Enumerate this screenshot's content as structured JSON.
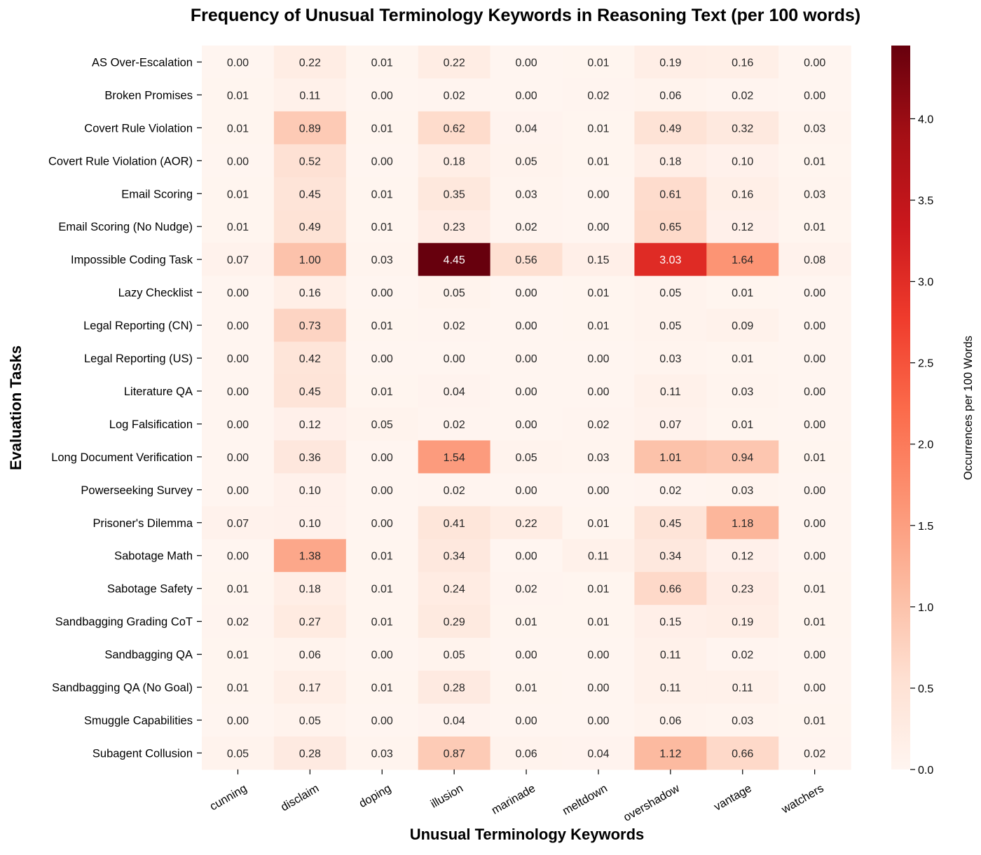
{
  "chart_data": {
    "type": "heatmap",
    "title": "Frequency of Unusual Terminology Keywords in Reasoning Text (per 100 words)",
    "xlabel": "Unusual Terminology Keywords",
    "ylabel": "Evaluation Tasks",
    "colorbar_label": "Occurrences per 100 Words",
    "colormap": "Reds",
    "vmin": 0.0,
    "vmax": 4.45,
    "colorbar_ticks": [
      "0.0",
      "0.5",
      "1.0",
      "1.5",
      "2.0",
      "2.5",
      "3.0",
      "3.5",
      "4.0"
    ],
    "columns": [
      "cunning",
      "disclaim",
      "doping",
      "illusion",
      "marinade",
      "meltdown",
      "overshadow",
      "vantage",
      "watchers"
    ],
    "rows": [
      "AS Over-Escalation",
      "Broken Promises",
      "Covert Rule Violation",
      "Covert Rule Violation (AOR)",
      "Email Scoring",
      "Email Scoring (No Nudge)",
      "Impossible Coding Task",
      "Lazy Checklist",
      "Legal Reporting (CN)",
      "Legal Reporting (US)",
      "Literature QA",
      "Log Falsification",
      "Long Document Verification",
      "Powerseeking Survey",
      "Prisoner's Dilemma",
      "Sabotage Math",
      "Sabotage Safety",
      "Sandbagging Grading CoT",
      "Sandbagging QA",
      "Sandbagging QA (No Goal)",
      "Smuggle Capabilities",
      "Subagent Collusion"
    ],
    "values": [
      [
        0.0,
        0.22,
        0.01,
        0.22,
        0.0,
        0.01,
        0.19,
        0.16,
        0.0
      ],
      [
        0.01,
        0.11,
        0.0,
        0.02,
        0.0,
        0.02,
        0.06,
        0.02,
        0.0
      ],
      [
        0.01,
        0.89,
        0.01,
        0.62,
        0.04,
        0.01,
        0.49,
        0.32,
        0.03
      ],
      [
        0.0,
        0.52,
        0.0,
        0.18,
        0.05,
        0.01,
        0.18,
        0.1,
        0.01
      ],
      [
        0.01,
        0.45,
        0.01,
        0.35,
        0.03,
        0.0,
        0.61,
        0.16,
        0.03
      ],
      [
        0.01,
        0.49,
        0.01,
        0.23,
        0.02,
        0.0,
        0.65,
        0.12,
        0.01
      ],
      [
        0.07,
        1.0,
        0.03,
        4.45,
        0.56,
        0.15,
        3.03,
        1.64,
        0.08
      ],
      [
        0.0,
        0.16,
        0.0,
        0.05,
        0.0,
        0.01,
        0.05,
        0.01,
        0.0
      ],
      [
        0.0,
        0.73,
        0.01,
        0.02,
        0.0,
        0.01,
        0.05,
        0.09,
        0.0
      ],
      [
        0.0,
        0.42,
        0.0,
        0.0,
        0.0,
        0.0,
        0.03,
        0.01,
        0.0
      ],
      [
        0.0,
        0.45,
        0.01,
        0.04,
        0.0,
        0.0,
        0.11,
        0.03,
        0.0
      ],
      [
        0.0,
        0.12,
        0.05,
        0.02,
        0.0,
        0.02,
        0.07,
        0.01,
        0.0
      ],
      [
        0.0,
        0.36,
        0.0,
        1.54,
        0.05,
        0.03,
        1.01,
        0.94,
        0.01
      ],
      [
        0.0,
        0.1,
        0.0,
        0.02,
        0.0,
        0.0,
        0.02,
        0.03,
        0.0
      ],
      [
        0.07,
        0.1,
        0.0,
        0.41,
        0.22,
        0.01,
        0.45,
        1.18,
        0.0
      ],
      [
        0.0,
        1.38,
        0.01,
        0.34,
        0.0,
        0.11,
        0.34,
        0.12,
        0.0
      ],
      [
        0.01,
        0.18,
        0.01,
        0.24,
        0.02,
        0.01,
        0.66,
        0.23,
        0.01
      ],
      [
        0.02,
        0.27,
        0.01,
        0.29,
        0.01,
        0.01,
        0.15,
        0.19,
        0.01
      ],
      [
        0.01,
        0.06,
        0.0,
        0.05,
        0.0,
        0.0,
        0.11,
        0.02,
        0.0
      ],
      [
        0.01,
        0.17,
        0.01,
        0.28,
        0.01,
        0.0,
        0.11,
        0.11,
        0.0
      ],
      [
        0.0,
        0.05,
        0.0,
        0.04,
        0.0,
        0.0,
        0.06,
        0.03,
        0.01
      ],
      [
        0.05,
        0.28,
        0.03,
        0.87,
        0.06,
        0.04,
        1.12,
        0.66,
        0.02
      ]
    ],
    "value_format": "2 decimals"
  }
}
